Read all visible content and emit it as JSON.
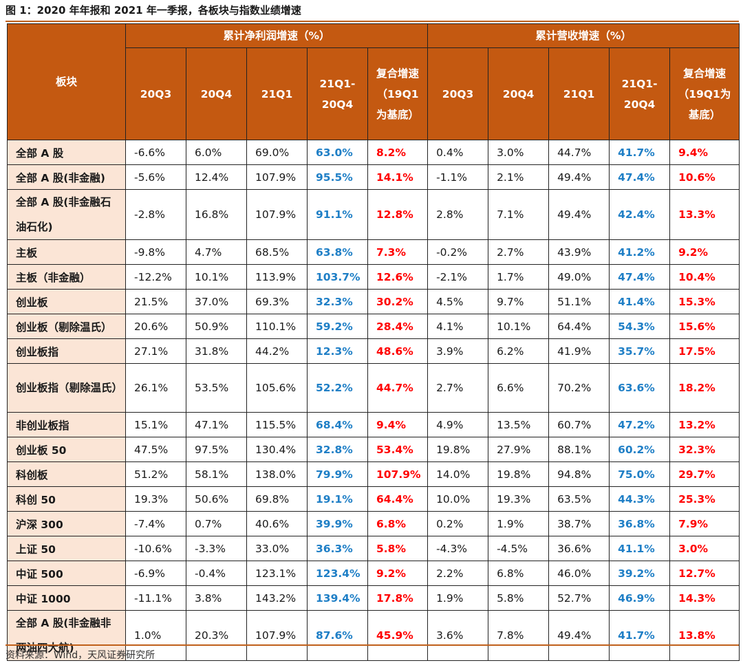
{
  "title": "图 1：2020 年年报和 2021 年一季报，各板块与指数业绩增速",
  "source": "资料来源：Wind，天风证券研究所",
  "colors": {
    "header_bg": "#c45911",
    "label_bg": "#fbe5d6",
    "blue": "#1f7fc6",
    "red": "#ff0000"
  },
  "chart_data": {
    "type": "table",
    "row_header": "板块",
    "groups": [
      "累计净利润增速（%）",
      "累计营收增速（%）"
    ],
    "columns": [
      "20Q3",
      "20Q4",
      "21Q1",
      "21Q1-20Q4",
      "复合增速（19Q1为基底）"
    ],
    "rows": [
      {
        "label": "全部 A 股",
        "profit": [
          "-6.6%",
          "6.0%",
          "69.0%",
          "63.0%",
          "8.2%"
        ],
        "revenue": [
          "0.4%",
          "3.0%",
          "44.7%",
          "41.7%",
          "9.4%"
        ]
      },
      {
        "label": "全部 A 股(非金融)",
        "profit": [
          "-5.6%",
          "12.4%",
          "107.9%",
          "95.5%",
          "14.1%"
        ],
        "revenue": [
          "-1.1%",
          "2.1%",
          "49.4%",
          "47.4%",
          "10.6%"
        ]
      },
      {
        "label": "全部 A 股(非金融石油石化)",
        "profit": [
          "-2.8%",
          "16.8%",
          "107.9%",
          "91.1%",
          "12.8%"
        ],
        "revenue": [
          "2.8%",
          "7.1%",
          "49.4%",
          "42.4%",
          "13.3%"
        ]
      },
      {
        "label": "主板",
        "profit": [
          "-9.8%",
          "4.7%",
          "68.5%",
          "63.8%",
          "7.3%"
        ],
        "revenue": [
          "-0.2%",
          "2.7%",
          "43.9%",
          "41.2%",
          "9.2%"
        ]
      },
      {
        "label": "主板（非金融）",
        "profit": [
          "-12.2%",
          "10.1%",
          "113.9%",
          "103.7%",
          "12.6%"
        ],
        "revenue": [
          "-2.1%",
          "1.7%",
          "49.0%",
          "47.4%",
          "10.4%"
        ]
      },
      {
        "label": "创业板",
        "profit": [
          "21.5%",
          "37.0%",
          "69.3%",
          "32.3%",
          "30.2%"
        ],
        "revenue": [
          "4.5%",
          "9.7%",
          "51.1%",
          "41.4%",
          "15.3%"
        ]
      },
      {
        "label": "创业板（剔除温氏）",
        "profit": [
          "20.6%",
          "50.9%",
          "110.1%",
          "59.2%",
          "28.4%"
        ],
        "revenue": [
          "4.1%",
          "10.1%",
          "64.4%",
          "54.3%",
          "15.6%"
        ]
      },
      {
        "label": "创业板指",
        "profit": [
          "27.1%",
          "31.8%",
          "44.2%",
          "12.3%",
          "48.6%"
        ],
        "revenue": [
          "3.9%",
          "6.2%",
          "41.9%",
          "35.7%",
          "17.5%"
        ]
      },
      {
        "label": "创业板指（剔除温氏）",
        "profit": [
          "26.1%",
          "53.5%",
          "105.6%",
          "52.2%",
          "44.7%"
        ],
        "revenue": [
          "2.7%",
          "6.6%",
          "70.2%",
          "63.6%",
          "18.2%"
        ]
      },
      {
        "label": "非创业板指",
        "profit": [
          "15.1%",
          "47.1%",
          "115.5%",
          "68.4%",
          "9.4%"
        ],
        "revenue": [
          "4.9%",
          "13.5%",
          "60.7%",
          "47.2%",
          "13.2%"
        ]
      },
      {
        "label": "创业板 50",
        "profit": [
          "47.5%",
          "97.5%",
          "130.4%",
          "32.8%",
          "53.4%"
        ],
        "revenue": [
          "19.8%",
          "27.9%",
          "88.1%",
          "60.2%",
          "32.3%"
        ]
      },
      {
        "label": "科创板",
        "profit": [
          "51.2%",
          "58.1%",
          "138.0%",
          "79.9%",
          "107.9%"
        ],
        "revenue": [
          "14.0%",
          "19.8%",
          "94.8%",
          "75.0%",
          "29.7%"
        ]
      },
      {
        "label": "科创 50",
        "profit": [
          "19.3%",
          "50.6%",
          "69.8%",
          "19.1%",
          "64.4%"
        ],
        "revenue": [
          "10.0%",
          "19.3%",
          "63.5%",
          "44.3%",
          "25.3%"
        ]
      },
      {
        "label": "沪深 300",
        "profit": [
          "-7.4%",
          "0.7%",
          "40.6%",
          "39.9%",
          "6.8%"
        ],
        "revenue": [
          "0.2%",
          "1.9%",
          "38.7%",
          "36.8%",
          "7.9%"
        ]
      },
      {
        "label": "上证 50",
        "profit": [
          "-10.6%",
          "-3.3%",
          "33.0%",
          "36.3%",
          "5.8%"
        ],
        "revenue": [
          "-4.3%",
          "-4.5%",
          "36.6%",
          "41.1%",
          "3.0%"
        ]
      },
      {
        "label": "中证 500",
        "profit": [
          "-6.9%",
          "-0.4%",
          "123.1%",
          "123.4%",
          "9.2%"
        ],
        "revenue": [
          "2.2%",
          "6.8%",
          "46.0%",
          "39.2%",
          "12.7%"
        ]
      },
      {
        "label": "中证 1000",
        "profit": [
          "-11.1%",
          "3.8%",
          "143.2%",
          "139.4%",
          "17.8%"
        ],
        "revenue": [
          "1.9%",
          "5.8%",
          "52.7%",
          "46.9%",
          "14.3%"
        ]
      },
      {
        "label": "全部 A 股(非金融非两油四大航)",
        "profit": [
          "1.0%",
          "20.3%",
          "107.9%",
          "87.6%",
          "45.9%"
        ],
        "revenue": [
          "3.6%",
          "7.8%",
          "49.4%",
          "41.7%",
          "13.8%"
        ]
      }
    ]
  }
}
